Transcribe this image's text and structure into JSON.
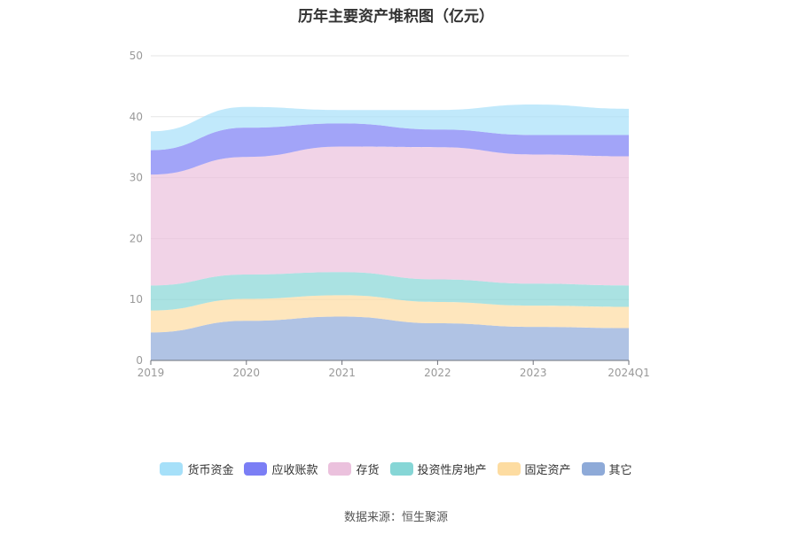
{
  "chart_data": {
    "type": "area",
    "stacked": true,
    "title": "历年主要资产堆积图（亿元）",
    "categories": [
      "2019",
      "2020",
      "2021",
      "2022",
      "2023",
      "2024Q1"
    ],
    "ylim": [
      0,
      50
    ],
    "yticks": [
      0,
      10,
      20,
      30,
      40,
      50
    ],
    "grid": true,
    "legend_position": "bottom",
    "series": [
      {
        "name": "其它",
        "color": "#8eaad8",
        "values": [
          4.6,
          6.5,
          7.2,
          6.1,
          5.5,
          5.3
        ]
      },
      {
        "name": "固定资产",
        "color": "#fddca1",
        "values": [
          3.6,
          3.6,
          3.5,
          3.5,
          3.5,
          3.5
        ]
      },
      {
        "name": "投资性房地产",
        "color": "#86d6d6",
        "values": [
          4.1,
          4.0,
          3.8,
          3.7,
          3.6,
          3.5
        ]
      },
      {
        "name": "存货",
        "color": "#ebc1dd",
        "values": [
          18.2,
          19.3,
          20.6,
          21.7,
          21.2,
          21.2
        ]
      },
      {
        "name": "应收账款",
        "color": "#7b7ef5",
        "values": [
          4.0,
          4.8,
          3.8,
          2.9,
          3.2,
          3.5
        ]
      },
      {
        "name": "货币资金",
        "color": "#a6e0f9",
        "values": [
          3.1,
          3.4,
          2.2,
          3.2,
          5.0,
          4.3
        ]
      }
    ]
  },
  "legend_order": [
    "货币资金",
    "应收账款",
    "存货",
    "投资性房地产",
    "固定资产",
    "其它"
  ],
  "source": "数据来源：恒生聚源"
}
